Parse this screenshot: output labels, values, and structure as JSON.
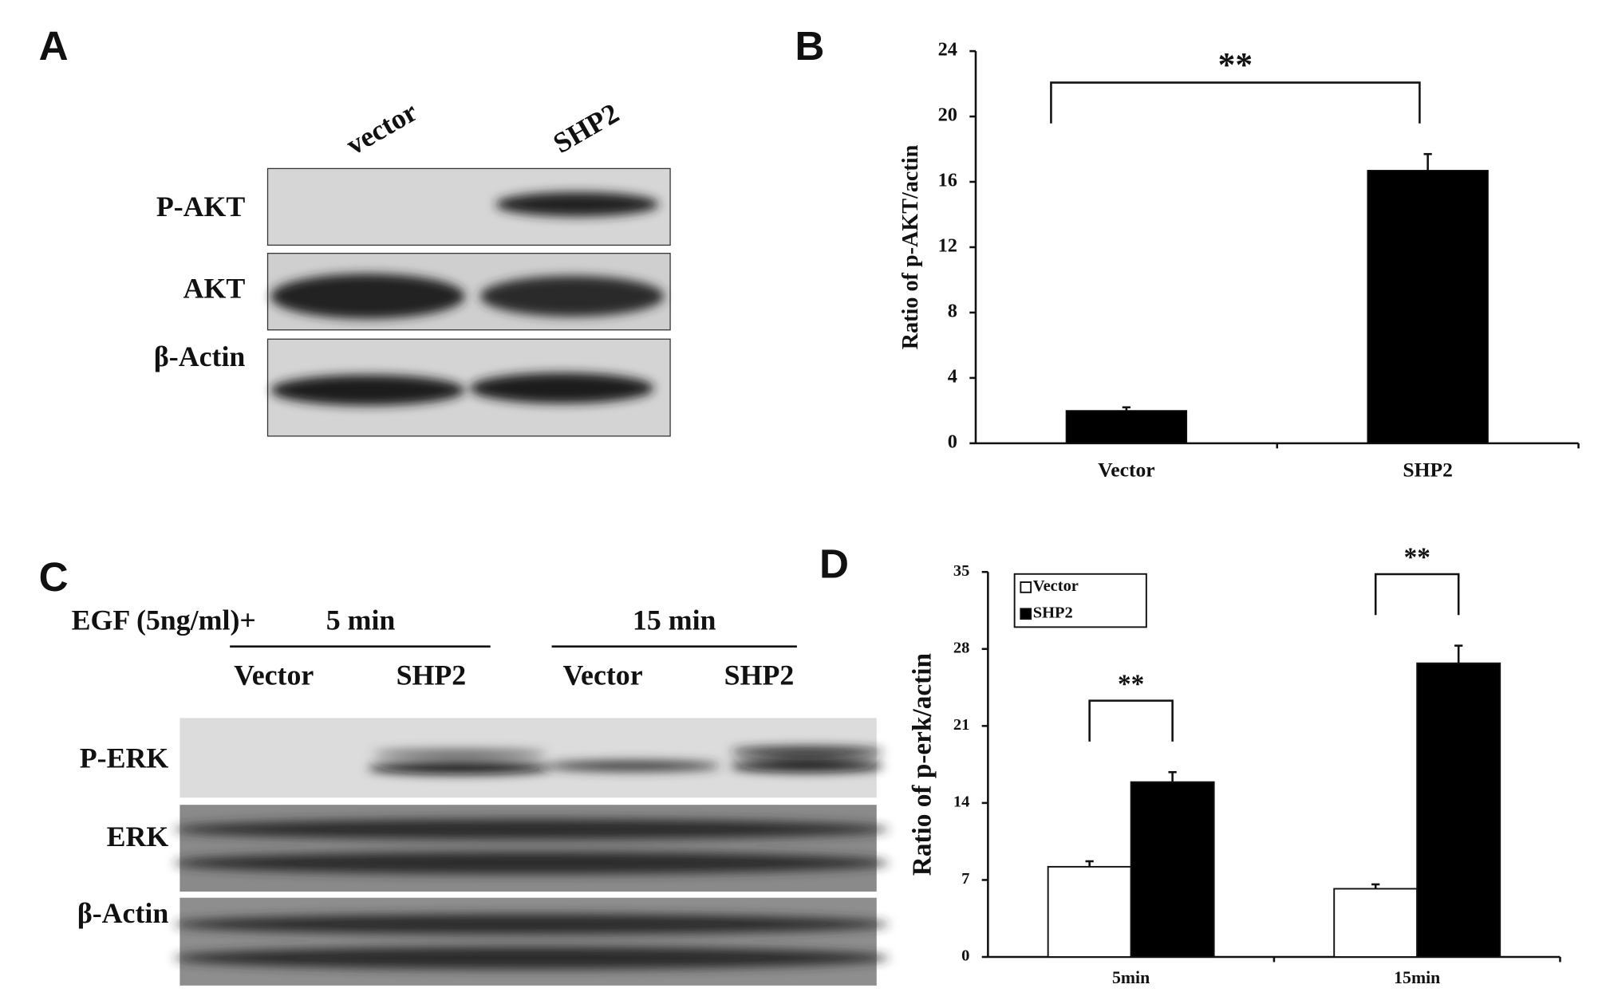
{
  "panel_labels": [
    "A",
    "B",
    "C",
    "D"
  ],
  "blot_a": {
    "lanes": [
      "vector",
      "SHP2"
    ],
    "rows": [
      "P-AKT",
      "AKT",
      "β-Actin"
    ]
  },
  "blot_c": {
    "treatment": "EGF (5ng/ml)+",
    "times": [
      "5 min",
      "15 min"
    ],
    "lanes": [
      "Vector",
      "SHP2",
      "Vector",
      "SHP2"
    ],
    "rows": [
      "P-ERK",
      "ERK",
      "β-Actin"
    ]
  },
  "chart_data": [
    {
      "type": "bar",
      "ylabel": "Ratio of p-AKT/actin",
      "categories": [
        "Vector",
        "SHP2"
      ],
      "values": [
        2.0,
        16.7
      ],
      "errors": [
        0.2,
        1.0
      ],
      "color": "#000000",
      "ylim": [
        0,
        24
      ],
      "yticks": [
        0,
        4,
        8,
        12,
        16,
        20,
        24
      ],
      "annotations": [
        "**"
      ]
    },
    {
      "type": "grouped_bar",
      "ylabel": "Ratio of p-erk/actin",
      "categories": [
        "5min",
        "15min"
      ],
      "series": [
        {
          "name": "Vector",
          "color": "#ffffff",
          "values": [
            8.2,
            6.2
          ],
          "errors": [
            0.5,
            0.4
          ]
        },
        {
          "name": "SHP2",
          "color": "#000000",
          "values": [
            15.9,
            26.7
          ],
          "errors": [
            0.9,
            1.6
          ]
        }
      ],
      "ylim": [
        0,
        35
      ],
      "yticks": [
        0,
        7,
        14,
        21,
        28,
        35
      ],
      "annotations": [
        "**",
        "**"
      ],
      "legend": "upper left"
    }
  ]
}
